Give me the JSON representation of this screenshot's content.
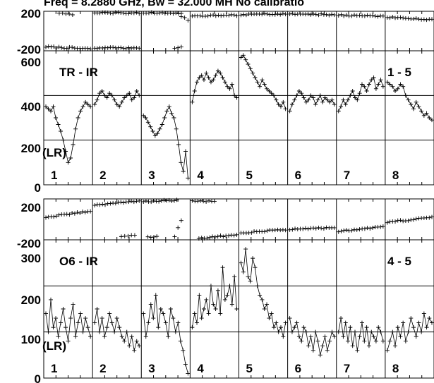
{
  "header": "Freq = 8.2880 GHz, Bw = 32.000 MH   No calibratio",
  "chart_data": [
    {
      "type": "scatter",
      "subtype": "phase",
      "source_label": "TR",
      "ylim": [
        -200,
        200
      ],
      "yticks": [
        "200",
        "-200"
      ],
      "baselines": [
        {
          "baseline": "1",
          "groups": [
            {
              "x": [
                0,
                1
              ],
              "y": [
                -160,
                -180
              ]
            },
            {
              "x": [
                0.3,
                0.6
              ],
              "y": [
                180,
                170
              ]
            }
          ]
        },
        {
          "baseline": "2",
          "groups": [
            {
              "x": [
                0,
                1
              ],
              "y": [
                -170,
                -175
              ]
            },
            {
              "x": [
                0,
                1
              ],
              "y": [
                185,
                182
              ]
            }
          ]
        },
        {
          "baseline": "3",
          "groups": [
            {
              "x": [
                0,
                0.85
              ],
              "y": [
                185,
                178
              ]
            },
            {
              "x": [
                0.7,
                0.85
              ],
              "y": [
                -180,
                -165
              ]
            },
            {
              "x": [
                0.85,
                1
              ],
              "y": [
                150,
                110
              ]
            }
          ]
        },
        {
          "baseline": "4",
          "groups": [
            {
              "x": [
                0,
                1
              ],
              "y": [
                155,
                160
              ]
            }
          ]
        },
        {
          "baseline": "5",
          "groups": [
            {
              "x": [
                0,
                1
              ],
              "y": [
                165,
                175
              ]
            }
          ]
        },
        {
          "baseline": "6",
          "groups": [
            {
              "x": [
                0,
                1
              ],
              "y": [
                175,
                165
              ]
            }
          ]
        },
        {
          "baseline": "7",
          "groups": [
            {
              "x": [
                0,
                1
              ],
              "y": [
                160,
                150
              ]
            }
          ]
        },
        {
          "baseline": "8",
          "groups": [
            {
              "x": [
                0,
                1
              ],
              "y": [
                140,
                115
              ]
            }
          ]
        }
      ]
    },
    {
      "type": "line",
      "subtype": "amplitude",
      "source_label": "TR - IR",
      "ylabel": "(LR)",
      "corner_label": "1 - 5",
      "ylim": [
        0,
        600
      ],
      "yticks": [
        "600",
        "400",
        "200",
        "0"
      ],
      "baselines": [
        {
          "baseline": "1",
          "values": [
            350,
            340,
            330,
            350,
            300,
            270,
            240,
            200,
            150,
            100,
            120,
            180,
            250,
            300,
            330,
            350,
            370,
            360,
            350
          ]
        },
        {
          "baseline": "2",
          "values": [
            360,
            380,
            410,
            420,
            400,
            390,
            410,
            400,
            380,
            360,
            350,
            370,
            390,
            400,
            410,
            380,
            390,
            420,
            400
          ]
        },
        {
          "baseline": "3",
          "values": [
            310,
            300,
            280,
            260,
            240,
            220,
            230,
            250,
            270,
            300,
            330,
            350,
            320,
            300,
            250,
            180,
            100,
            60,
            150,
            30
          ]
        },
        {
          "baseline": "4",
          "values": [
            370,
            420,
            460,
            480,
            490,
            470,
            500,
            480,
            460,
            470,
            490,
            510,
            500,
            480,
            460,
            440,
            430,
            450,
            400,
            390
          ]
        },
        {
          "baseline": "5",
          "values": [
            570,
            580,
            560,
            540,
            520,
            500,
            480,
            460,
            440,
            470,
            450,
            430,
            420,
            410,
            400,
            380,
            360,
            350,
            370,
            340
          ]
        },
        {
          "baseline": "6",
          "values": [
            330,
            360,
            380,
            400,
            420,
            410,
            390,
            370,
            380,
            400,
            390,
            360,
            380,
            400,
            370,
            390,
            380,
            370,
            380,
            360
          ]
        },
        {
          "baseline": "7",
          "values": [
            330,
            350,
            380,
            360,
            380,
            400,
            420,
            390,
            380,
            410,
            450,
            440,
            420,
            450,
            470,
            480,
            430,
            450,
            470,
            440
          ]
        },
        {
          "baseline": "8",
          "values": [
            460,
            450,
            440,
            420,
            430,
            450,
            440,
            400,
            380,
            360,
            340,
            370,
            350,
            330,
            310,
            320,
            300,
            290
          ]
        }
      ]
    },
    {
      "type": "scatter",
      "subtype": "phase",
      "source_label": "O6",
      "ylim": [
        -200,
        200
      ],
      "yticks": [
        "200",
        "-200"
      ],
      "baselines": [
        {
          "baseline": "1",
          "groups": [
            {
              "x": [
                0,
                1
              ],
              "y": [
                20,
                80
              ]
            }
          ]
        },
        {
          "baseline": "2",
          "groups": [
            {
              "x": [
                0,
                1
              ],
              "y": [
                140,
                180
              ]
            },
            {
              "x": [
                0.6,
                0.9
              ],
              "y": [
                -165,
                -160
              ]
            }
          ]
        },
        {
          "baseline": "3",
          "groups": [
            {
              "x": [
                0,
                0.75
              ],
              "y": [
                175,
                185
              ]
            },
            {
              "x": [
                0.1,
                0.3
              ],
              "y": [
                -175,
                -170
              ]
            },
            {
              "x": [
                0.7,
                0.85
              ],
              "y": [
                -165,
                -10
              ]
            }
          ]
        },
        {
          "baseline": "4",
          "groups": [
            {
              "x": [
                0,
                0.5
              ],
              "y": [
                185,
                175
              ]
            },
            {
              "x": [
                0.15,
                1
              ],
              "y": [
                -185,
                -150
              ]
            }
          ]
        },
        {
          "baseline": "5",
          "groups": [
            {
              "x": [
                0,
                1
              ],
              "y": [
                -130,
                -100
              ]
            }
          ]
        },
        {
          "baseline": "6",
          "groups": [
            {
              "x": [
                0,
                1
              ],
              "y": [
                -100,
                -80
              ]
            }
          ]
        },
        {
          "baseline": "7",
          "groups": [
            {
              "x": [
                0,
                1
              ],
              "y": [
                -120,
                -70
              ]
            }
          ]
        },
        {
          "baseline": "8",
          "groups": [
            {
              "x": [
                0,
                1
              ],
              "y": [
                -30,
                20
              ]
            }
          ]
        }
      ]
    },
    {
      "type": "line",
      "subtype": "amplitude",
      "source_label": "O6 - IR",
      "ylabel": "(LR)",
      "corner_label": "4 - 5",
      "ylim": [
        0,
        300
      ],
      "yticks": [
        "300",
        "200",
        "100",
        "0"
      ],
      "baselines": [
        {
          "baseline": "1",
          "values": [
            140,
            100,
            170,
            110,
            130,
            90,
            120,
            150,
            110,
            80,
            130,
            160,
            90,
            120,
            140,
            100,
            130,
            110,
            90
          ]
        },
        {
          "baseline": "2",
          "values": [
            120,
            150,
            100,
            130,
            90,
            110,
            140,
            120,
            100,
            130,
            110,
            90,
            80,
            100,
            70,
            90,
            60,
            80,
            70
          ]
        },
        {
          "baseline": "3",
          "values": [
            140,
            90,
            120,
            160,
            130,
            180,
            110,
            150,
            140,
            120,
            90,
            150,
            130,
            100,
            120,
            80,
            60,
            30,
            10
          ]
        },
        {
          "baseline": "4",
          "values": [
            110,
            140,
            120,
            180,
            130,
            150,
            170,
            140,
            200,
            160,
            150,
            190,
            140,
            240,
            170,
            180,
            200,
            160,
            220,
            150
          ]
        },
        {
          "baseline": "5",
          "values": [
            250,
            230,
            280,
            220,
            210,
            260,
            240,
            200,
            180,
            170,
            150,
            160,
            130,
            140,
            110,
            120,
            100,
            110,
            90,
            120
          ]
        },
        {
          "baseline": "6",
          "values": [
            130,
            100,
            110,
            120,
            90,
            80,
            110,
            100,
            70,
            90,
            60,
            100,
            80,
            50,
            70,
            90,
            60,
            80,
            100,
            90
          ]
        },
        {
          "baseline": "7",
          "values": [
            100,
            130,
            90,
            120,
            80,
            110,
            70,
            100,
            60,
            90,
            120,
            80,
            110,
            70,
            100,
            90,
            80,
            110,
            100,
            80
          ]
        },
        {
          "baseline": "8",
          "values": [
            60,
            80,
            100,
            70,
            110,
            90,
            120,
            80,
            100,
            130,
            110,
            90,
            120,
            100,
            140,
            110,
            130,
            120
          ]
        }
      ]
    }
  ]
}
